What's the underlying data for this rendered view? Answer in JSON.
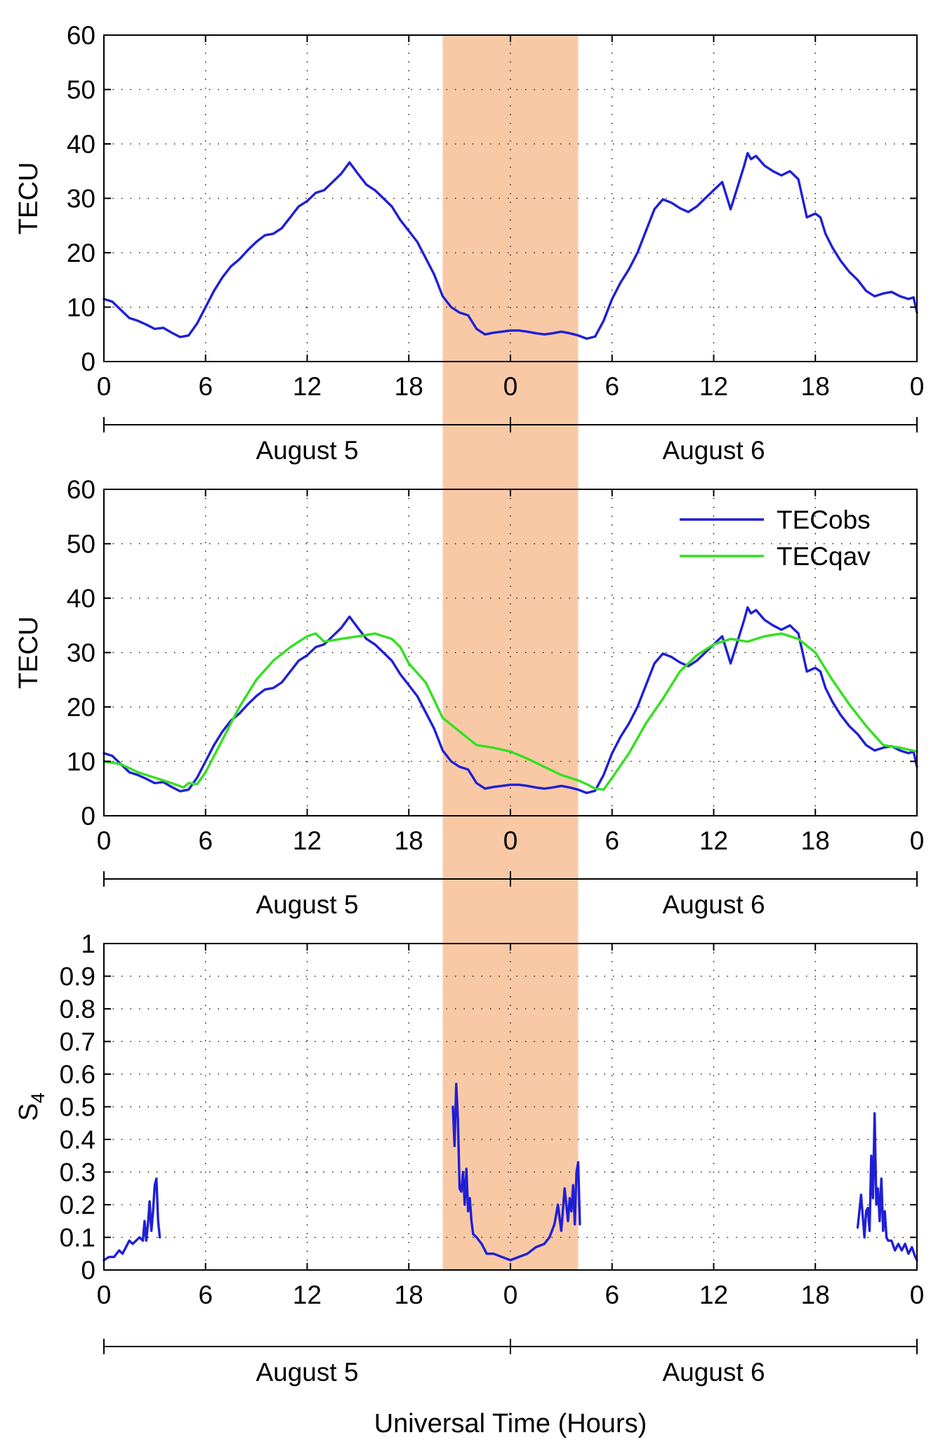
{
  "figure": {
    "xlabel": "Universal Time (Hours)",
    "x_ticks": [
      0,
      6,
      12,
      18,
      24,
      30,
      36,
      42,
      48
    ],
    "x_tick_labels": [
      "0",
      "6",
      "12",
      "18",
      "0",
      "6",
      "12",
      "18",
      "0"
    ],
    "day_labels": [
      "August 5",
      "August 6"
    ],
    "shaded_interval_hours": [
      20,
      28
    ],
    "shade_color": "#f9c9a6",
    "colors": {
      "TECobs": "#1f1fd6",
      "TECqav": "#33e01f",
      "S4": "#1f1fd6",
      "axis": "#000000"
    }
  },
  "chart_data": [
    {
      "type": "line",
      "xlim": [
        0,
        48
      ],
      "ylim": [
        0,
        60
      ],
      "ylabel": "TECU",
      "yticks": [
        0,
        10,
        20,
        30,
        40,
        50,
        60
      ],
      "ytick_labels": [
        "0",
        "10",
        "20",
        "30",
        "40",
        "50",
        "60"
      ],
      "grid": "dotted",
      "legend": "none",
      "series": [
        {
          "key": "TECobs",
          "x": [
            0,
            0.5,
            1,
            1.5,
            2,
            2.5,
            3,
            3.5,
            4,
            4.5,
            5,
            5.5,
            6,
            6.5,
            7,
            7.5,
            8,
            8.5,
            9,
            9.5,
            10,
            10.5,
            11,
            11.5,
            12,
            12.5,
            13,
            13.5,
            14,
            14.5,
            15,
            15.5,
            16,
            16.5,
            17,
            17.5,
            18,
            18.5,
            19,
            19.5,
            20,
            20.5,
            21,
            21.5,
            22,
            22.5,
            23,
            23.5,
            24,
            24.5,
            25,
            25.5,
            26,
            26.5,
            27,
            27.5,
            28,
            28.5,
            29,
            29.5,
            30,
            30.5,
            31,
            31.5,
            32,
            32.5,
            33,
            33.5,
            34,
            34.5,
            35,
            35.5,
            36,
            36.5,
            37,
            37.5,
            37.8,
            38,
            38.2,
            38.5,
            39,
            39.5,
            40,
            40.5,
            41,
            41.5,
            42,
            42.3,
            42.6,
            43,
            43.5,
            44,
            44.5,
            45,
            45.5,
            46,
            46.5,
            47,
            47.5,
            47.8,
            48
          ],
          "y": [
            11.5,
            11,
            9.5,
            8,
            7.5,
            6.8,
            6,
            6.2,
            5.3,
            4.5,
            4.8,
            7,
            10,
            13,
            15.5,
            17.5,
            18.8,
            20.5,
            22,
            23.2,
            23.5,
            24.5,
            26.5,
            28.5,
            29.5,
            31,
            31.5,
            33,
            34.5,
            36.6,
            34.5,
            32.5,
            31.5,
            30,
            28.5,
            26,
            24,
            22,
            19,
            16,
            12,
            10,
            9,
            8.5,
            6,
            5,
            5.3,
            5.5,
            5.7,
            5.7,
            5.5,
            5.2,
            5,
            5.2,
            5.5,
            5.2,
            4.8,
            4.2,
            4.6,
            7.5,
            11.5,
            14.5,
            17,
            20,
            24,
            28,
            29.8,
            29.2,
            28.2,
            27.5,
            28.5,
            30,
            31.5,
            33,
            28,
            33,
            36,
            38.3,
            37.2,
            37.8,
            36,
            35,
            34.2,
            35,
            33.5,
            26.5,
            27.2,
            26.5,
            23.5,
            21,
            18.5,
            16.5,
            15,
            13,
            12,
            12.5,
            12.8,
            12,
            11.5,
            11.8,
            9
          ]
        }
      ]
    },
    {
      "type": "line",
      "xlim": [
        0,
        48
      ],
      "ylim": [
        0,
        60
      ],
      "ylabel": "TECU",
      "yticks": [
        0,
        10,
        20,
        30,
        40,
        50,
        60
      ],
      "ytick_labels": [
        "0",
        "10",
        "20",
        "30",
        "40",
        "50",
        "60"
      ],
      "grid": "dotted",
      "legend": "top-right",
      "series": [
        {
          "name": "TECobs",
          "key": "TECobs",
          "x": [
            0,
            0.5,
            1,
            1.5,
            2,
            2.5,
            3,
            3.5,
            4,
            4.5,
            5,
            5.5,
            6,
            6.5,
            7,
            7.5,
            8,
            8.5,
            9,
            9.5,
            10,
            10.5,
            11,
            11.5,
            12,
            12.5,
            13,
            13.5,
            14,
            14.5,
            15,
            15.5,
            16,
            16.5,
            17,
            17.5,
            18,
            18.5,
            19,
            19.5,
            20,
            20.5,
            21,
            21.5,
            22,
            22.5,
            23,
            23.5,
            24,
            24.5,
            25,
            25.5,
            26,
            26.5,
            27,
            27.5,
            28,
            28.5,
            29,
            29.5,
            30,
            30.5,
            31,
            31.5,
            32,
            32.5,
            33,
            33.5,
            34,
            34.5,
            35,
            35.5,
            36,
            36.5,
            37,
            37.5,
            37.8,
            38,
            38.2,
            38.5,
            39,
            39.5,
            40,
            40.5,
            41,
            41.5,
            42,
            42.3,
            42.6,
            43,
            43.5,
            44,
            44.5,
            45,
            45.5,
            46,
            46.5,
            47,
            47.5,
            47.8,
            48
          ],
          "y": [
            11.5,
            11,
            9.5,
            8,
            7.5,
            6.8,
            6,
            6.2,
            5.3,
            4.5,
            4.8,
            7,
            10,
            13,
            15.5,
            17.5,
            18.8,
            20.5,
            22,
            23.2,
            23.5,
            24.5,
            26.5,
            28.5,
            29.5,
            31,
            31.5,
            33,
            34.5,
            36.6,
            34.5,
            32.5,
            31.5,
            30,
            28.5,
            26,
            24,
            22,
            19,
            16,
            12,
            10,
            9,
            8.5,
            6,
            5,
            5.3,
            5.5,
            5.7,
            5.7,
            5.5,
            5.2,
            5,
            5.2,
            5.5,
            5.2,
            4.8,
            4.2,
            4.6,
            7.5,
            11.5,
            14.5,
            17,
            20,
            24,
            28,
            29.8,
            29.2,
            28.2,
            27.5,
            28.5,
            30,
            31.5,
            33,
            28,
            33,
            36,
            38.3,
            37.2,
            37.8,
            36,
            35,
            34.2,
            35,
            33.5,
            26.5,
            27.2,
            26.5,
            23.5,
            21,
            18.5,
            16.5,
            15,
            13,
            12,
            12.5,
            12.8,
            12,
            11.5,
            11.8,
            9
          ]
        },
        {
          "name": "TECqav",
          "key": "TECqav",
          "x": [
            0,
            1,
            2,
            3,
            4,
            4.7,
            5,
            5.5,
            6,
            7,
            8,
            9,
            10,
            11,
            12,
            12.5,
            13,
            14,
            15,
            16,
            17,
            17.5,
            18,
            19,
            20,
            21,
            22,
            23,
            24,
            25,
            26,
            27,
            28,
            28.5,
            29,
            29.5,
            30,
            31,
            32,
            33,
            34,
            35,
            36,
            37,
            38,
            39,
            40,
            41,
            42,
            43,
            44,
            45,
            46,
            47,
            48
          ],
          "y": [
            10,
            9.5,
            8,
            7,
            6,
            5.2,
            6,
            5.8,
            8,
            14,
            20,
            25,
            28.5,
            31,
            33,
            33.5,
            32,
            32.5,
            33,
            33.5,
            32.5,
            31,
            28,
            24.5,
            18,
            15.5,
            13,
            12.5,
            11.8,
            10.5,
            9,
            7.5,
            6.5,
            5.8,
            5,
            4.8,
            7,
            11.5,
            17,
            21.5,
            26.5,
            29.5,
            31.5,
            32.5,
            32,
            33,
            33.5,
            32.5,
            30,
            25,
            20.5,
            16.5,
            13,
            12.5,
            11.8
          ]
        }
      ]
    },
    {
      "type": "line",
      "xlim": [
        0,
        48
      ],
      "ylim": [
        0,
        1
      ],
      "ylabel": "S4",
      "ylabel_main": "S",
      "ylabel_sub": "4",
      "yticks": [
        0,
        0.1,
        0.2,
        0.3,
        0.4,
        0.5,
        0.6,
        0.7,
        0.8,
        0.9,
        1
      ],
      "ytick_labels": [
        "0",
        "0.1",
        "0.2",
        "0.3",
        "0.4",
        "0.5",
        "0.6",
        "0.7",
        "0.8",
        "0.9",
        "1"
      ],
      "grid": "dotted",
      "legend": "none",
      "series": [
        {
          "key": "S4",
          "segments": [
            {
              "x": [
                0,
                0.3,
                0.6,
                0.9,
                1.1,
                1.3,
                1.5,
                1.7,
                1.9,
                2.1,
                2.3,
                2.4,
                2.5,
                2.6,
                2.7,
                2.8,
                2.9,
                3.0,
                3.1,
                3.2,
                3.3
              ],
              "y": [
                0.03,
                0.04,
                0.04,
                0.06,
                0.05,
                0.07,
                0.09,
                0.08,
                0.09,
                0.1,
                0.09,
                0.15,
                0.09,
                0.14,
                0.21,
                0.12,
                0.18,
                0.26,
                0.28,
                0.15,
                0.1
              ]
            },
            {
              "x": [
                20.6,
                20.7,
                20.8,
                20.9,
                21.0,
                21.1,
                21.2,
                21.3,
                21.4,
                21.5,
                21.6,
                21.7,
                21.8,
                22.0,
                22.3,
                22.6,
                23,
                23.5,
                24,
                24.5,
                25,
                25.5,
                26,
                26.3,
                26.6,
                26.8,
                27.0,
                27.2,
                27.4,
                27.5,
                27.6,
                27.7,
                27.8,
                27.9,
                28.0,
                28.1
              ],
              "y": [
                0.5,
                0.38,
                0.57,
                0.46,
                0.25,
                0.24,
                0.3,
                0.2,
                0.31,
                0.18,
                0.22,
                0.15,
                0.11,
                0.1,
                0.08,
                0.05,
                0.05,
                0.04,
                0.03,
                0.04,
                0.05,
                0.07,
                0.08,
                0.1,
                0.14,
                0.2,
                0.12,
                0.25,
                0.15,
                0.22,
                0.18,
                0.26,
                0.14,
                0.3,
                0.33,
                0.14
              ]
            },
            {
              "x": [
                44.5,
                44.7,
                44.9,
                45.0,
                45.1,
                45.2,
                45.3,
                45.4,
                45.5,
                45.6,
                45.7,
                45.8,
                45.9,
                46.0,
                46.1,
                46.2,
                46.3,
                46.5,
                46.7,
                46.9,
                47.1,
                47.3,
                47.5,
                47.7,
                47.9,
                48.0
              ],
              "y": [
                0.13,
                0.23,
                0.1,
                0.18,
                0.19,
                0.12,
                0.35,
                0.22,
                0.48,
                0.2,
                0.25,
                0.15,
                0.28,
                0.12,
                0.18,
                0.1,
                0.09,
                0.09,
                0.06,
                0.08,
                0.06,
                0.08,
                0.05,
                0.07,
                0.04,
                0.03
              ]
            }
          ]
        }
      ]
    }
  ]
}
